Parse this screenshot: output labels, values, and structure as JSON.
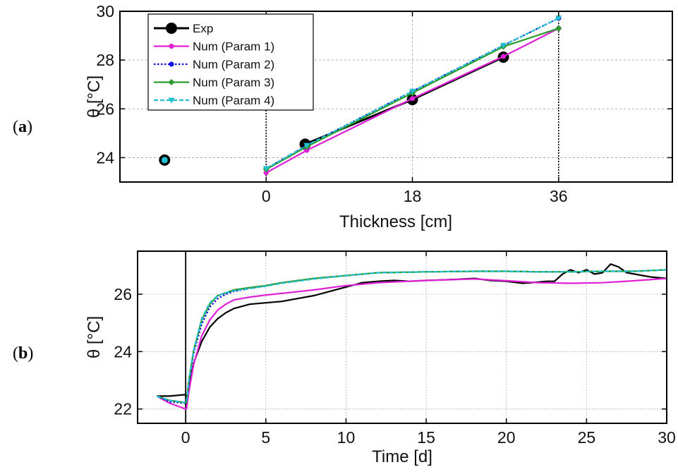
{
  "chart_data": [
    {
      "panel_label": "a",
      "type": "line",
      "xlabel": "Thickness [cm]",
      "ylabel": "θ [°C]",
      "xlim": [
        -18,
        50
      ],
      "ylim": [
        23,
        30
      ],
      "xticks": [
        0,
        18,
        36
      ],
      "yticks": [
        24,
        26,
        28,
        30
      ],
      "grid": "dashed",
      "legend_position": "top-left",
      "vlines": [
        0,
        36
      ],
      "series": [
        {
          "name": "Exp",
          "color": "#000000",
          "marker": "bigcircle",
          "dash": "solid",
          "x": [
            -12.5,
            4.8,
            18,
            29.2
          ],
          "y": [
            23.9,
            24.55,
            26.38,
            28.12
          ]
        },
        {
          "name": "Num (Param 1)",
          "color": "#e020d8",
          "marker": "dot",
          "dash": "solid",
          "x": [
            0,
            5,
            18,
            29.2,
            36
          ],
          "y": [
            23.38,
            24.3,
            26.42,
            28.15,
            29.3
          ]
        },
        {
          "name": "Num (Param 2)",
          "color": "#1010e8",
          "marker": "dot",
          "dash": "dotted",
          "x": [
            0,
            5,
            18,
            29.2,
            36
          ],
          "y": [
            23.55,
            24.5,
            26.72,
            28.6,
            29.72
          ]
        },
        {
          "name": "Num (Param 3)",
          "color": "#2a9a2a",
          "marker": "diamond",
          "dash": "solid",
          "x": [
            0,
            5,
            18,
            29.2,
            36
          ],
          "y": [
            23.52,
            24.45,
            26.65,
            28.55,
            29.3
          ]
        },
        {
          "name": "Num (Param 4)",
          "color": "#20c0d0",
          "marker": "triangle",
          "dash": "dashed",
          "x": [
            0,
            5,
            18,
            29.2,
            36
          ],
          "y": [
            23.55,
            24.5,
            26.72,
            28.6,
            29.72
          ]
        }
      ]
    },
    {
      "panel_label": "b",
      "type": "line",
      "xlabel": "Time [d]",
      "ylabel": "θ [°C]",
      "xlim": [
        -3,
        30
      ],
      "ylim": [
        21.5,
        27.5
      ],
      "xticks": [
        0,
        5,
        10,
        15,
        20,
        25,
        30
      ],
      "yticks": [
        22,
        24,
        26
      ],
      "grid": "dotted",
      "vlines": [
        0
      ],
      "series": [
        {
          "name": "Exp",
          "color": "#000000",
          "dash": "solid",
          "x": [
            -1.8,
            -1,
            0,
            0.05,
            0.2,
            0.5,
            1,
            1.5,
            2,
            2.5,
            3,
            4,
            5,
            6,
            7,
            8,
            9,
            10,
            11,
            12,
            13,
            14,
            15,
            16,
            17,
            18,
            19,
            20,
            21,
            22,
            22.5,
            23,
            23.5,
            24,
            24.5,
            25,
            25.5,
            26,
            26.5,
            27,
            27.5,
            28,
            29,
            30
          ],
          "y": [
            22.45,
            22.45,
            22.5,
            22.05,
            22.8,
            23.6,
            24.35,
            24.85,
            25.15,
            25.35,
            25.5,
            25.65,
            25.7,
            25.75,
            25.85,
            25.95,
            26.1,
            26.25,
            26.4,
            26.45,
            26.48,
            26.45,
            26.48,
            26.5,
            26.52,
            26.55,
            26.48,
            26.45,
            26.38,
            26.42,
            26.45,
            26.45,
            26.7,
            26.85,
            26.75,
            26.85,
            26.7,
            26.75,
            27.05,
            26.95,
            26.75,
            26.7,
            26.6,
            26.55
          ]
        },
        {
          "name": "Num (Param 1)",
          "color": "#e020d8",
          "dash": "solid",
          "x": [
            -1.8,
            -1,
            0,
            0.05,
            0.2,
            0.5,
            1,
            1.5,
            2,
            2.5,
            3,
            4,
            5,
            6,
            8,
            10,
            12,
            15,
            18,
            20,
            22,
            24,
            26,
            28,
            30
          ],
          "y": [
            22.45,
            22.2,
            22.0,
            22.0,
            22.6,
            23.55,
            24.55,
            25.1,
            25.45,
            25.65,
            25.8,
            25.9,
            25.97,
            26.03,
            26.15,
            26.3,
            26.4,
            26.48,
            26.53,
            26.47,
            26.4,
            26.38,
            26.4,
            26.47,
            26.55
          ]
        },
        {
          "name": "Num (Param 2)",
          "color": "#1010e8",
          "dash": "dotted",
          "x": [
            -1.8,
            -1,
            0,
            0.05,
            0.2,
            0.5,
            1,
            1.5,
            2,
            2.5,
            3,
            4,
            5,
            6,
            8,
            10,
            12,
            15,
            18,
            20,
            22,
            24,
            26,
            28,
            30
          ],
          "y": [
            22.45,
            22.25,
            22.2,
            22.2,
            22.9,
            23.95,
            24.95,
            25.55,
            25.85,
            26.0,
            26.1,
            26.2,
            26.3,
            26.4,
            26.55,
            26.65,
            26.75,
            26.78,
            26.8,
            26.8,
            26.78,
            26.78,
            26.8,
            26.8,
            26.85
          ]
        },
        {
          "name": "Num (Param 3)",
          "color": "#2a9a2a",
          "dash": "solid",
          "x": [
            -1.8,
            -1,
            0,
            0.05,
            0.2,
            0.5,
            1,
            1.5,
            2,
            2.5,
            3,
            4,
            5,
            6,
            8,
            10,
            12,
            15,
            18,
            20,
            22,
            24,
            26,
            28,
            30
          ],
          "y": [
            22.45,
            22.3,
            22.22,
            22.22,
            23.0,
            24.05,
            25.1,
            25.65,
            25.95,
            26.05,
            26.15,
            26.23,
            26.3,
            26.4,
            26.55,
            26.65,
            26.75,
            26.78,
            26.8,
            26.8,
            26.78,
            26.78,
            26.8,
            26.8,
            26.85
          ]
        },
        {
          "name": "Num (Param 4)",
          "color": "#20c0d0",
          "dash": "dashed",
          "x": [
            -1.8,
            -1,
            0,
            0.05,
            0.2,
            0.5,
            1,
            1.5,
            2,
            2.5,
            3,
            4,
            5,
            6,
            8,
            10,
            12,
            15,
            18,
            20,
            22,
            24,
            26,
            28,
            30
          ],
          "y": [
            22.45,
            22.3,
            22.22,
            22.22,
            23.0,
            24.05,
            25.15,
            25.7,
            25.95,
            26.05,
            26.12,
            26.2,
            26.28,
            26.38,
            26.53,
            26.65,
            26.75,
            26.78,
            26.8,
            26.8,
            26.78,
            26.78,
            26.8,
            26.8,
            26.85
          ]
        }
      ]
    }
  ]
}
